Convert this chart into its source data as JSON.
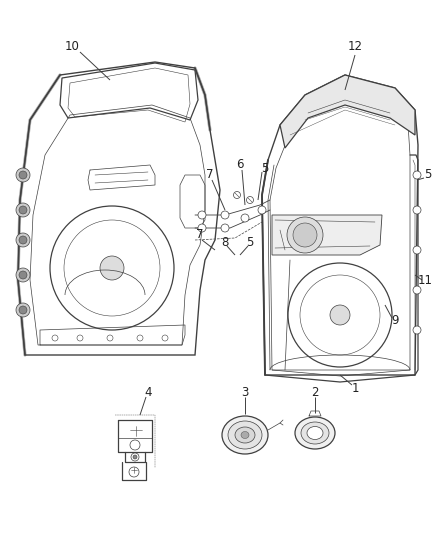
{
  "background_color": "#ffffff",
  "line_color": "#404040",
  "label_color": "#222222",
  "figsize": [
    4.38,
    5.33
  ],
  "dpi": 100,
  "lw_main": 0.9,
  "lw_thin": 0.5,
  "label_fs": 8.5
}
